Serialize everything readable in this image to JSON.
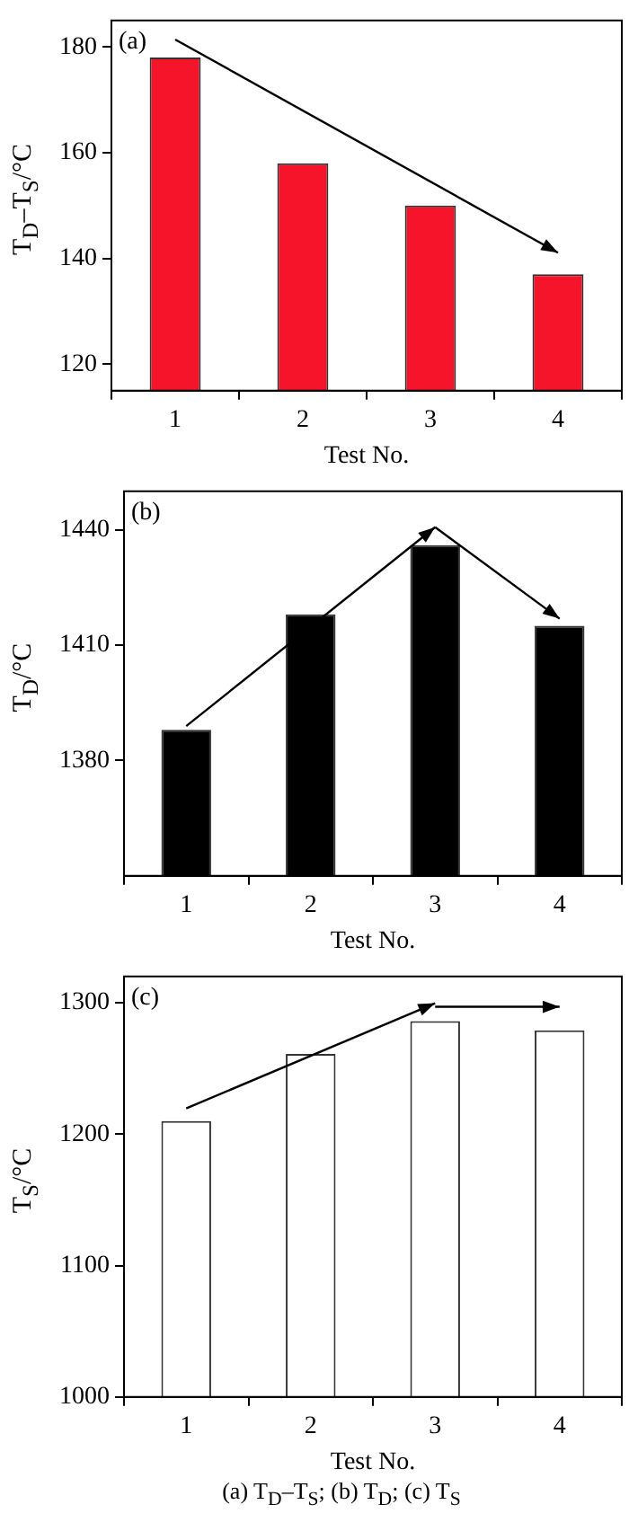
{
  "chart_data": [
    {
      "type": "bar",
      "title": "(a)",
      "categories": [
        "1",
        "2",
        "3",
        "4"
      ],
      "values": [
        178,
        158,
        150,
        137
      ],
      "color": "#f5142a",
      "xlabel": "Test No.",
      "ylabel": "T$_{D}$–T$_{S}$/°C",
      "ylim": [
        115,
        185
      ],
      "yticks": [
        120,
        140,
        160,
        180
      ]
    },
    {
      "type": "bar",
      "title": "(b)",
      "categories": [
        "1",
        "2",
        "3",
        "4"
      ],
      "values": [
        1388,
        1418,
        1436,
        1415
      ],
      "color": "#000000",
      "xlabel": "Test No.",
      "ylabel": "T$_{D}$/°C",
      "ylim": [
        1350,
        1450
      ],
      "yticks": [
        1380,
        1410,
        1440
      ]
    },
    {
      "type": "bar",
      "title": "(c)",
      "categories": [
        "1",
        "2",
        "3",
        "4"
      ],
      "values": [
        1210,
        1261,
        1286,
        1279
      ],
      "color": "#ffffff",
      "xlabel": "Test No.",
      "ylabel": "T$_{S}$/°C",
      "ylim": [
        1000,
        1320
      ],
      "yticks": [
        1000,
        1100,
        1200,
        1300
      ],
      "annotations": [
        "(a) T$_{D}$–T$_{S}$; (b) T$_{D}$; (c) T$_{S}$"
      ]
    }
  ]
}
